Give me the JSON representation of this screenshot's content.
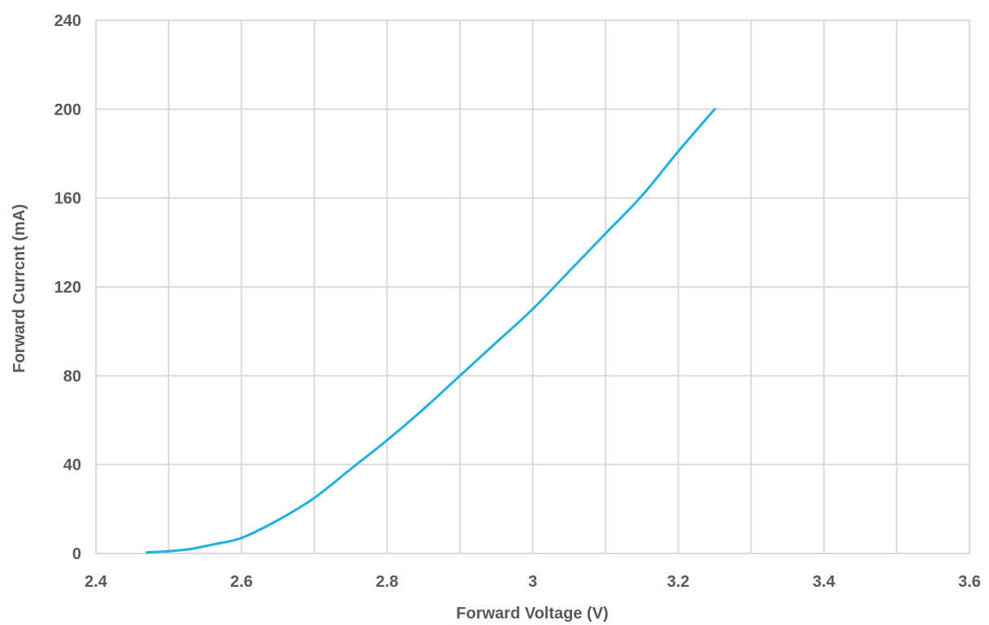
{
  "chart_data": {
    "type": "line",
    "title": "",
    "xlabel": "Forward Voltage  (V)",
    "ylabel": "Forward Currcnt  (mA)",
    "xlim": [
      2.4,
      3.6
    ],
    "ylim": [
      0,
      240
    ],
    "x_ticks": [
      "2.4",
      "2.6",
      "2.8",
      "3",
      "3.2",
      "3.4",
      "3.6"
    ],
    "y_ticks": [
      "0",
      "40",
      "80",
      "120",
      "160",
      "200",
      "240"
    ],
    "x_minor_grid": [
      2.5,
      2.7,
      2.9,
      3.1,
      3.3,
      3.5
    ],
    "grid": true,
    "legend": "none",
    "series": [
      {
        "color": "#1fb0e0",
        "x": [
          2.47,
          2.5,
          2.53,
          2.56,
          2.6,
          2.65,
          2.7,
          2.75,
          2.8,
          2.85,
          2.9,
          2.95,
          3.0,
          3.05,
          3.1,
          3.15,
          3.2,
          3.25
        ],
        "y": [
          0.5,
          1,
          2,
          4,
          7,
          15,
          25,
          38,
          51,
          65,
          80,
          95,
          110,
          127,
          144,
          161,
          181,
          200
        ]
      }
    ]
  }
}
